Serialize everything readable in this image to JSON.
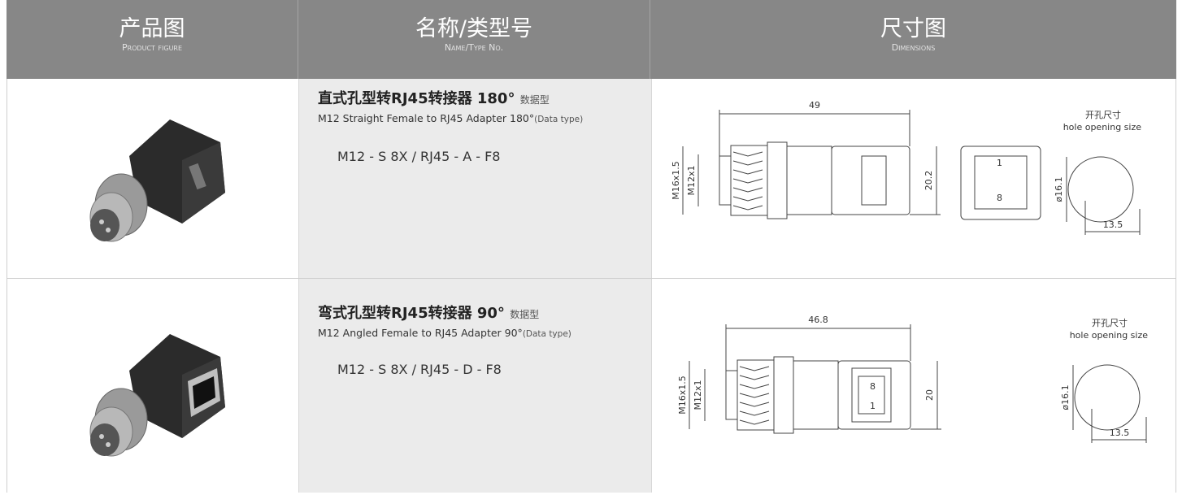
{
  "header": {
    "columns": [
      {
        "title": "产品图",
        "subtitle": "Product figure"
      },
      {
        "title": "名称/类型号",
        "subtitle": "Name/Type No."
      },
      {
        "title": "尺寸图",
        "subtitle": "Dimensions"
      }
    ]
  },
  "rows": [
    {
      "name_cn": "直式孔型转RJ45转接器 180°",
      "type_cn": "数据型",
      "name_en": "M12 Straight Female to RJ45 Adapter 180°",
      "type_en": "(Data type)",
      "code": "M12 - S 8X / RJ45 - A - F8",
      "dimensions": {
        "length": "49",
        "thread_outer": "M16x1.5",
        "thread_inner": "M12x1",
        "height": "20.2",
        "pin_top": "1",
        "pin_bottom": "8",
        "cutout_cn": "开孔尺寸",
        "cutout_en": "hole opening size",
        "diameter": "ø16.1",
        "width": "13.5"
      }
    },
    {
      "name_cn": "弯式孔型转RJ45转接器 90°",
      "type_cn": "数据型",
      "name_en": "M12 Angled Female to RJ45 Adapter 90°",
      "type_en": "(Data type)",
      "code": "M12 - S 8X / RJ45 - D - F8",
      "dimensions": {
        "length": "46.8",
        "thread_outer": "M16x1.5",
        "thread_inner": "M12x1",
        "height": "20",
        "pin_top": "8",
        "pin_bottom": "1",
        "cutout_cn": "开孔尺寸",
        "cutout_en": "hole opening size",
        "diameter": "ø16.1",
        "width": "13.5"
      }
    }
  ]
}
